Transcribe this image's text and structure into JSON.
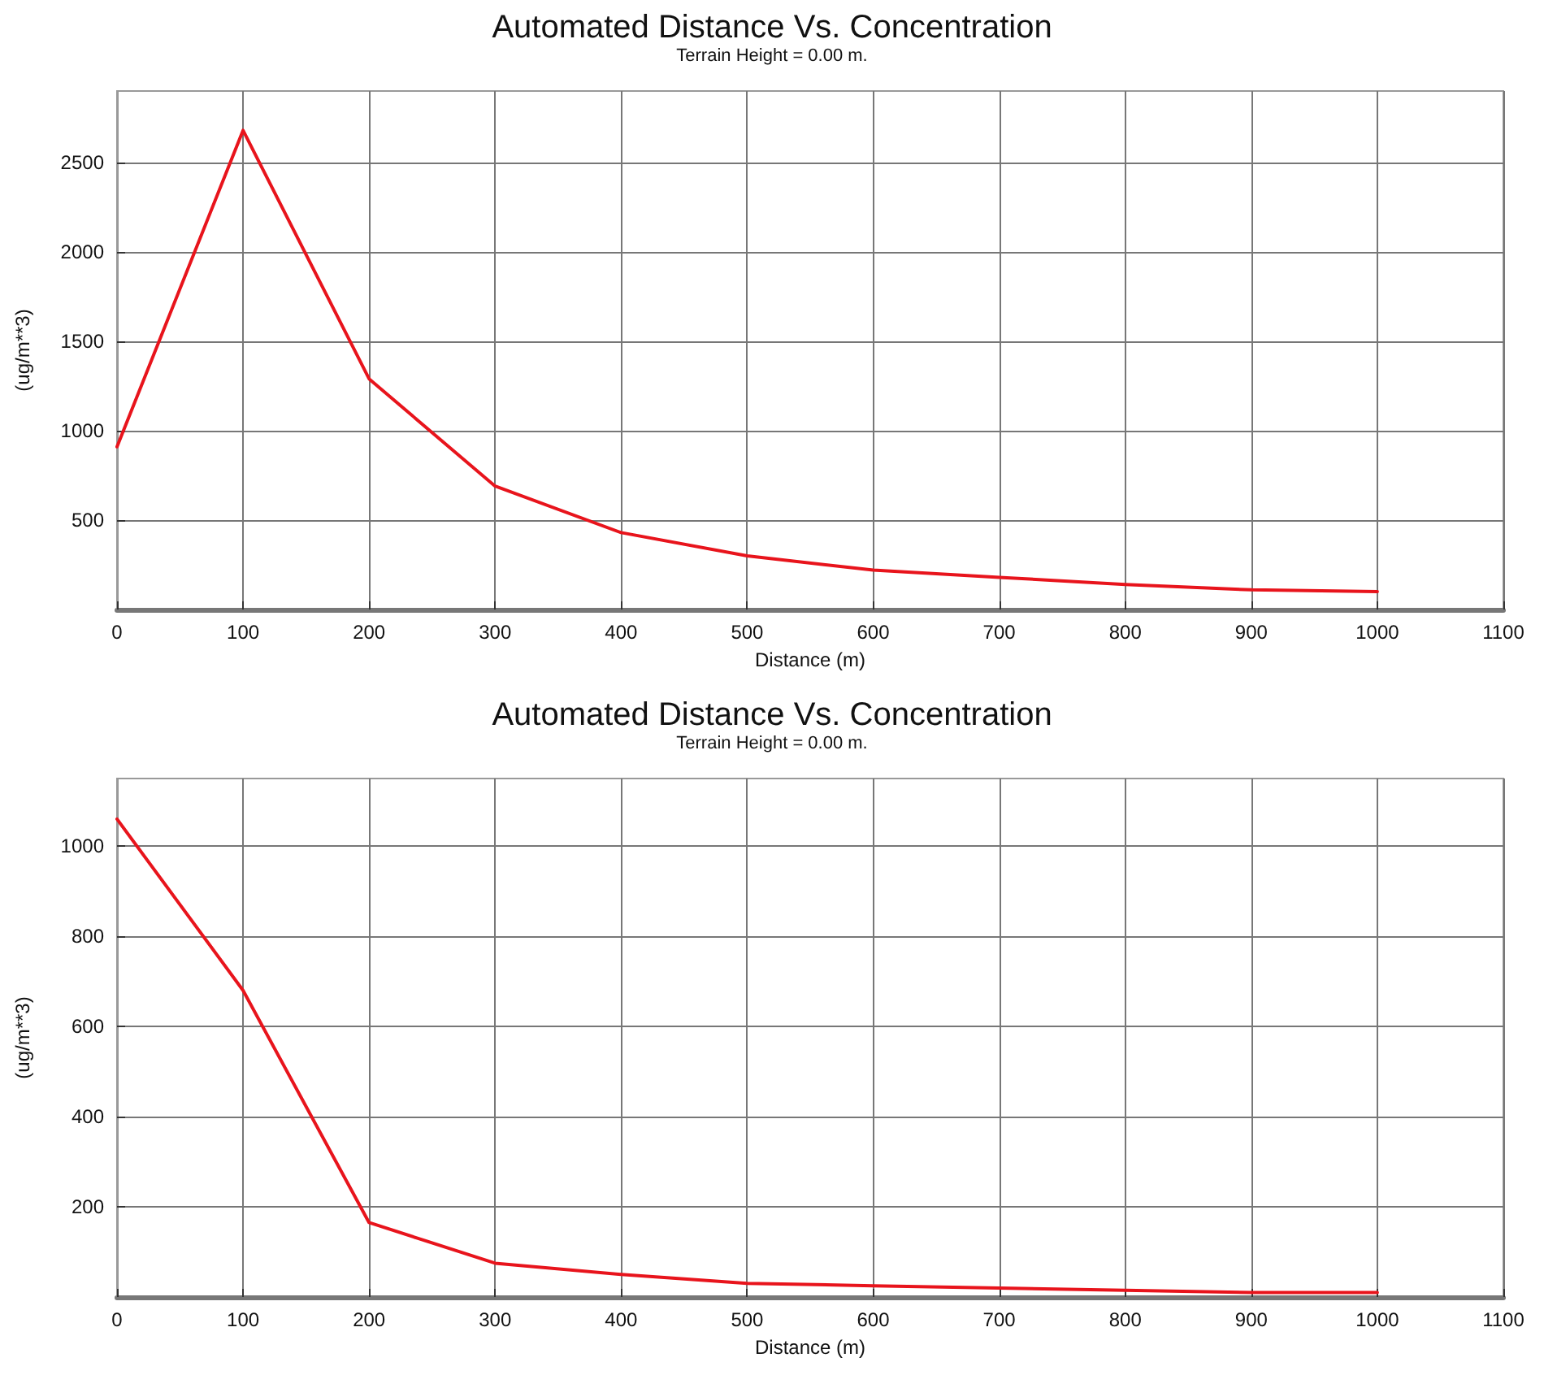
{
  "chart_data": [
    {
      "type": "line",
      "title": "Automated Distance Vs. Concentration",
      "subtitle": "Terrain Height = 0.00 m.",
      "xlabel": "Distance (m)",
      "ylabel": "(ug/m**3)",
      "x": [
        0,
        100,
        200,
        300,
        400,
        500,
        600,
        700,
        800,
        900,
        1000
      ],
      "series": [
        {
          "color": "#e8141c",
          "values": [
            910,
            2680,
            1290,
            690,
            430,
            300,
            220,
            180,
            140,
            110,
            100
          ]
        }
      ],
      "xlim": [
        0,
        1100
      ],
      "xticks": [
        0,
        100,
        200,
        300,
        400,
        500,
        600,
        700,
        800,
        900,
        1000,
        1100
      ],
      "ylim": [
        0,
        2900
      ],
      "yticks": [
        500,
        1000,
        1500,
        2000,
        2500
      ],
      "grid": true,
      "marker": "none",
      "line_style": "solid"
    },
    {
      "type": "line",
      "title": "Automated Distance Vs. Concentration",
      "subtitle": "Terrain Height = 0.00 m.",
      "xlabel": "Distance (m)",
      "ylabel": "(ug/m**3)",
      "x": [
        0,
        100,
        200,
        300,
        400,
        500,
        600,
        700,
        800,
        900,
        1000
      ],
      "series": [
        {
          "color": "#e8141c",
          "values": [
            1060,
            680,
            165,
            75,
            50,
            30,
            25,
            20,
            15,
            10,
            10
          ]
        }
      ],
      "xlim": [
        0,
        1100
      ],
      "xticks": [
        0,
        100,
        200,
        300,
        400,
        500,
        600,
        700,
        800,
        900,
        1000,
        1100
      ],
      "ylim": [
        0,
        1150
      ],
      "yticks": [
        200,
        400,
        600,
        800,
        1000
      ],
      "grid": true,
      "marker": "none",
      "line_style": "solid"
    }
  ]
}
